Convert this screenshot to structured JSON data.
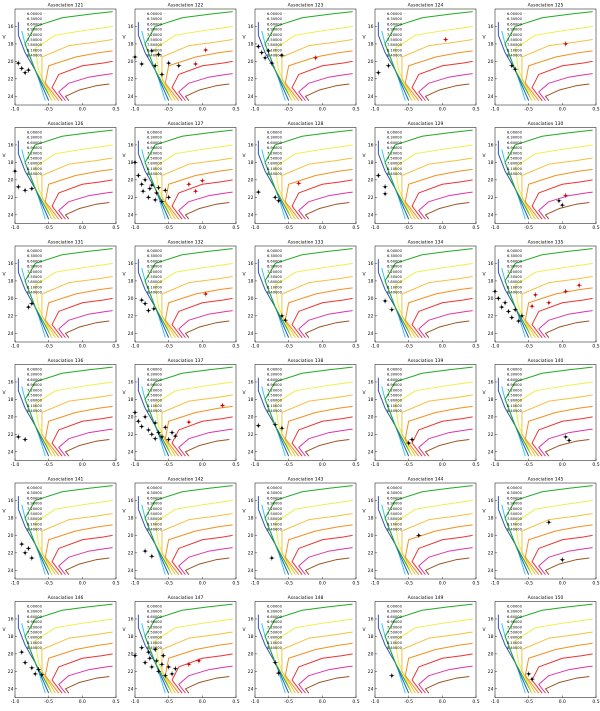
{
  "axes": {
    "xlim": [
      -1.0,
      0.5
    ],
    "xticks": [
      {
        "value": -1.0,
        "label": "-1.0"
      },
      {
        "value": -0.5,
        "label": "-0.5"
      },
      {
        "value": 0,
        "label": "0.0"
      },
      {
        "value": 0.5,
        "label": "0.5"
      }
    ],
    "ylim": [
      25,
      14
    ],
    "yticks": [
      16,
      18,
      20,
      22,
      24
    ],
    "ylabel": "V"
  },
  "isochrones": [
    {
      "name": "6.00000",
      "color": "#33ccee",
      "x": [
        -0.55,
        -0.65,
        -0.75,
        -0.85,
        -0.9
      ],
      "y": [
        24.5,
        22,
        20,
        18,
        16.5
      ]
    },
    {
      "name": "6.30000",
      "color": "#3355bb",
      "x": [
        -0.5,
        -0.7,
        -0.85,
        -0.95,
        -0.95
      ],
      "y": [
        24.5,
        21,
        19,
        17,
        15.5
      ]
    },
    {
      "name": "6.60000",
      "color": "#22aa22",
      "x": [
        -0.45,
        -0.7,
        -0.85,
        -0.7,
        -0.3,
        0.1,
        0.45
      ],
      "y": [
        24.5,
        21,
        18,
        16,
        15,
        14.6,
        14.3
      ]
    },
    {
      "name": "6.90000",
      "color": "#eeee44",
      "x": [
        -0.45,
        -0.65,
        -0.7,
        -0.4,
        0,
        0.45
      ],
      "y": [
        24.5,
        21,
        18.5,
        17,
        16.5,
        16
      ]
    },
    {
      "name": "7.20000",
      "color": "#f5c040",
      "x": [
        -0.4,
        -0.6,
        -0.6,
        -0.2,
        0.2,
        0.45
      ],
      "y": [
        24.5,
        22,
        19.5,
        18.2,
        17.8,
        17.5
      ]
    },
    {
      "name": "7.50000",
      "color": "#f59020",
      "x": [
        -0.35,
        -0.55,
        -0.5,
        -0.1,
        0.25,
        0.45
      ],
      "y": [
        24.5,
        22.5,
        20.5,
        19.5,
        19,
        18.8
      ]
    },
    {
      "name": "7.80000",
      "color": "#ee3333",
      "x": [
        -0.3,
        -0.45,
        -0.35,
        0,
        0.3,
        0.45
      ],
      "y": [
        24.5,
        23,
        21.5,
        20.5,
        20.2,
        20
      ]
    },
    {
      "name": "8.10000",
      "color": "#dd33aa",
      "x": [
        -0.25,
        -0.35,
        -0.2,
        0.1,
        0.35,
        0.45
      ],
      "y": [
        24.5,
        23.5,
        22.5,
        21.8,
        21.5,
        21.4
      ]
    },
    {
      "name": "8.40000",
      "color": "#995522",
      "x": [
        -0.2,
        -0.25,
        -0.05,
        0.2,
        0.4
      ],
      "y": [
        24.5,
        24,
        23.3,
        22.8,
        22.6
      ]
    }
  ],
  "chart_data": [
    {
      "type": "scatter",
      "title": "Association 121",
      "series": [
        {
          "color": "#000000",
          "x": [
            -0.95,
            -0.9,
            -0.85,
            -0.8
          ],
          "values": [
            20.2,
            20.8,
            21.3,
            21.0
          ]
        }
      ]
    },
    {
      "type": "scatter",
      "title": "Association 122",
      "series": [
        {
          "color": "#000000",
          "x": [
            -1.0,
            -0.9,
            -0.75,
            -0.7,
            -0.65,
            -0.6,
            -0.5,
            -0.35
          ],
          "values": [
            19.5,
            20.3,
            18.8,
            20.5,
            19.2,
            21.5,
            20.2,
            20.5
          ]
        },
        {
          "color": "#cc0000",
          "x": [
            0.05,
            -0.1
          ],
          "values": [
            18.7,
            20.3
          ]
        }
      ]
    },
    {
      "type": "scatter",
      "title": "Association 123",
      "series": [
        {
          "color": "#000000",
          "x": [
            -0.95,
            -0.9,
            -0.85,
            -0.8,
            -0.75,
            -0.6
          ],
          "values": [
            18.3,
            19,
            19.6,
            18.8,
            20.2,
            19.3
          ]
        },
        {
          "color": "#cc0000",
          "x": [
            -0.1
          ],
          "values": [
            19.6
          ]
        }
      ]
    },
    {
      "type": "scatter",
      "title": "Association 124",
      "series": [
        {
          "color": "#000000",
          "x": [
            -0.95,
            -0.8
          ],
          "values": [
            21.3,
            20.5
          ]
        },
        {
          "color": "#cc0000",
          "x": [
            0.05
          ],
          "values": [
            17.5
          ]
        }
      ]
    },
    {
      "type": "scatter",
      "title": "Association 125",
      "series": [
        {
          "color": "#000000",
          "x": [
            -0.75,
            -0.7
          ],
          "values": [
            20.5,
            20.9
          ]
        },
        {
          "color": "#cc0000",
          "x": [
            0.05
          ],
          "values": [
            18.0
          ]
        }
      ]
    },
    {
      "type": "scatter",
      "title": "Association 126",
      "series": [
        {
          "color": "#000000",
          "x": [
            -1.0,
            -0.95,
            -0.85,
            -0.75
          ],
          "values": [
            19.0,
            20.8,
            21.2,
            21.0
          ]
        }
      ]
    },
    {
      "type": "scatter",
      "title": "Association 127",
      "series": [
        {
          "color": "#000000",
          "x": [
            -1,
            -0.95,
            -0.9,
            -0.88,
            -0.85,
            -0.8,
            -0.78,
            -0.75,
            -0.7,
            -0.68,
            -0.65,
            -0.6,
            -0.55,
            -0.5
          ],
          "values": [
            18,
            19.5,
            20.5,
            21.3,
            20,
            22,
            21,
            20.6,
            22.3,
            21.5,
            20.9,
            22.5,
            21.2,
            22
          ]
        },
        {
          "color": "#cc0000",
          "x": [
            -0.2,
            0,
            -0.1
          ],
          "values": [
            20.5,
            20.1,
            21.3
          ]
        }
      ]
    },
    {
      "type": "scatter",
      "title": "Association 128",
      "series": [
        {
          "color": "#000000",
          "x": [
            -0.95,
            -0.7,
            -0.65
          ],
          "values": [
            21.4,
            22,
            22.4
          ]
        },
        {
          "color": "#cc0000",
          "x": [
            -0.35
          ],
          "values": [
            20.4
          ]
        }
      ]
    },
    {
      "type": "scatter",
      "title": "Association 129",
      "series": [
        {
          "color": "#000000",
          "x": [
            -0.95,
            -0.85,
            -0.85
          ],
          "values": [
            19.5,
            20.8,
            21.6
          ]
        }
      ]
    },
    {
      "type": "scatter",
      "title": "Association 130",
      "series": [
        {
          "color": "#000000",
          "x": [
            -0.05,
            0
          ],
          "values": [
            22.4,
            22.9
          ]
        },
        {
          "color": "#cc0000",
          "x": [
            0.05
          ],
          "values": [
            21.8
          ]
        }
      ]
    },
    {
      "type": "scatter",
      "title": "Association 131",
      "series": [
        {
          "color": "#000000",
          "x": [
            -0.8,
            -0.75
          ],
          "values": [
            21.0,
            20.6
          ]
        }
      ]
    },
    {
      "type": "scatter",
      "title": "Association 132",
      "series": [
        {
          "color": "#000000",
          "x": [
            -0.9,
            -0.85,
            -0.8,
            -0.72
          ],
          "values": [
            20.2,
            20.6,
            21.4,
            21.2
          ]
        },
        {
          "color": "#cc0000",
          "x": [
            0.05
          ],
          "values": [
            19.5
          ]
        }
      ]
    },
    {
      "type": "scatter",
      "title": "Association 133",
      "series": [
        {
          "color": "#000000",
          "x": [
            -0.6,
            -0.55
          ],
          "values": [
            22.0,
            22.5
          ]
        }
      ]
    },
    {
      "type": "scatter",
      "title": "Association 134",
      "series": [
        {
          "color": "#000000",
          "x": [
            -0.85,
            -0.75
          ],
          "values": [
            20.3,
            21.3
          ]
        }
      ]
    },
    {
      "type": "scatter",
      "title": "Association 135",
      "series": [
        {
          "color": "#000000",
          "x": [
            -1.0,
            -0.95,
            -0.9,
            -0.85,
            -0.8,
            -0.75,
            -0.7,
            -0.65,
            -0.6
          ],
          "values": [
            19.2,
            20,
            21,
            20.5,
            21.5,
            22.2,
            21.3,
            22.6,
            22
          ]
        },
        {
          "color": "#cc0000",
          "x": [
            -0.4,
            -0.2,
            0.05,
            0.25,
            -0.45
          ],
          "values": [
            19.6,
            20.5,
            19.2,
            18.5,
            20.9
          ]
        }
      ]
    },
    {
      "type": "scatter",
      "title": "Association 136",
      "series": [
        {
          "color": "#000000",
          "x": [
            -0.95,
            -0.85
          ],
          "values": [
            22.3,
            22.6
          ]
        }
      ]
    },
    {
      "type": "scatter",
      "title": "Association 137",
      "series": [
        {
          "color": "#000000",
          "x": [
            -1,
            -0.95,
            -0.9,
            -0.85,
            -0.8,
            -0.75,
            -0.7,
            -0.7,
            -0.65,
            -0.6,
            -0.55,
            -0.5,
            -0.45,
            -0.4
          ],
          "values": [
            19.5,
            20.5,
            21.1,
            20,
            21.5,
            22,
            20.7,
            22.5,
            21.8,
            22.3,
            21.2,
            22.6,
            21.8,
            22.2
          ]
        },
        {
          "color": "#cc0000",
          "x": [
            0.3,
            -0.2
          ],
          "values": [
            18.7,
            20.6
          ]
        }
      ]
    },
    {
      "type": "scatter",
      "title": "Association 138",
      "series": [
        {
          "color": "#000000",
          "x": [
            -0.95,
            -0.7,
            -0.6
          ],
          "values": [
            21.0,
            20.9,
            21.3
          ]
        }
      ]
    },
    {
      "type": "scatter",
      "title": "Association 139",
      "series": [
        {
          "color": "#000000",
          "x": [
            -0.45,
            -0.5
          ],
          "values": [
            22.6,
            23.0
          ]
        }
      ]
    },
    {
      "type": "scatter",
      "title": "Association 140",
      "series": [
        {
          "color": "#000000",
          "x": [
            0.05,
            0.1
          ],
          "values": [
            22.3,
            22.7
          ]
        }
      ]
    },
    {
      "type": "scatter",
      "title": "Association 141",
      "series": [
        {
          "color": "#000000",
          "x": [
            -0.9,
            -0.85,
            -0.8,
            -0.75
          ],
          "values": [
            21.0,
            22.0,
            21.5,
            22.6
          ]
        }
      ]
    },
    {
      "type": "scatter",
      "title": "Association 142",
      "series": [
        {
          "color": "#000000",
          "x": [
            -0.85,
            -0.75
          ],
          "values": [
            21.8,
            22.4
          ]
        }
      ]
    },
    {
      "type": "scatter",
      "title": "Association 143",
      "series": [
        {
          "color": "#000000",
          "x": [
            -0.75
          ],
          "values": [
            22.6
          ]
        }
      ]
    },
    {
      "type": "scatter",
      "title": "Association 144",
      "series": [
        {
          "color": "#000000",
          "x": [
            -0.35
          ],
          "values": [
            20.0
          ]
        }
      ]
    },
    {
      "type": "scatter",
      "title": "Association 145",
      "series": [
        {
          "color": "#000000",
          "x": [
            -0.2,
            0
          ],
          "values": [
            18.5,
            22.8
          ]
        }
      ]
    },
    {
      "type": "scatter",
      "title": "Association 146",
      "series": [
        {
          "color": "#000000",
          "x": [
            -0.9,
            -0.85,
            -0.75,
            -0.7,
            -0.65,
            -0.6
          ],
          "values": [
            19.8,
            21.0,
            21.6,
            22.3,
            21.8,
            22.4
          ]
        }
      ]
    },
    {
      "type": "scatter",
      "title": "Association 147",
      "series": [
        {
          "color": "#000000",
          "x": [
            -1,
            -0.9,
            -0.85,
            -0.8,
            -0.78,
            -0.75,
            -0.7,
            -0.68,
            -0.65,
            -0.6,
            -0.58,
            -0.55,
            -0.5,
            -0.45,
            -0.4
          ],
          "values": [
            20.2,
            19.3,
            21,
            19.8,
            20.5,
            21.5,
            19.5,
            20.8,
            22,
            21.2,
            20.2,
            22.5,
            21.5,
            22.3,
            21.7
          ]
        },
        {
          "color": "#cc0000",
          "x": [
            -0.2,
            -0.05
          ],
          "values": [
            21.2,
            20.8
          ]
        }
      ]
    },
    {
      "type": "scatter",
      "title": "Association 148",
      "series": [
        {
          "color": "#000000",
          "x": [
            -0.7,
            -0.65
          ],
          "values": [
            21.0,
            22.2
          ]
        }
      ]
    },
    {
      "type": "scatter",
      "title": "Association 149",
      "series": [
        {
          "color": "#000000",
          "x": [
            -0.75
          ],
          "values": [
            22.5
          ]
        }
      ]
    },
    {
      "type": "scatter",
      "title": "Association 150",
      "series": [
        {
          "color": "#000000",
          "x": [
            -0.5,
            -0.45
          ],
          "values": [
            22.3,
            22.9
          ]
        }
      ]
    }
  ]
}
